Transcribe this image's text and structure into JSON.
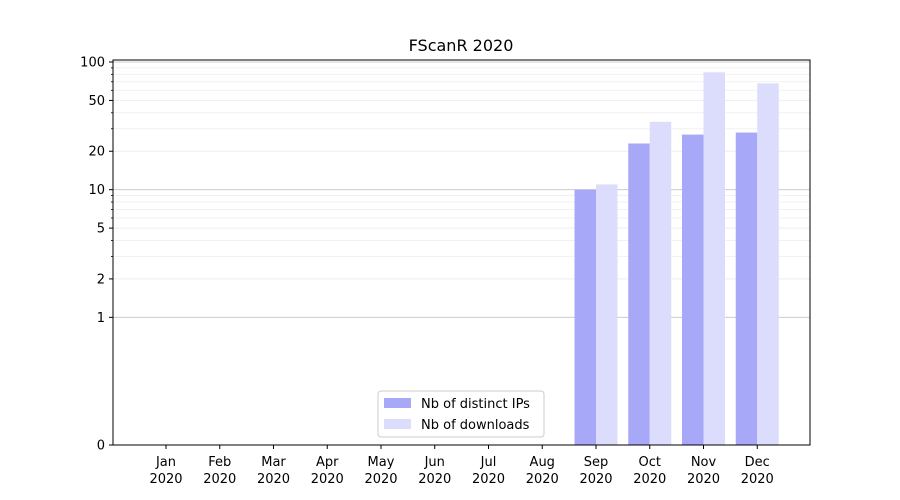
{
  "chart_data": {
    "type": "bar",
    "title": "FScanR 2020",
    "xlabel": "",
    "ylabel": "",
    "categories": [
      [
        "Jan",
        "2020"
      ],
      [
        "Feb",
        "2020"
      ],
      [
        "Mar",
        "2020"
      ],
      [
        "Apr",
        "2020"
      ],
      [
        "May",
        "2020"
      ],
      [
        "Jun",
        "2020"
      ],
      [
        "Jul",
        "2020"
      ],
      [
        "Aug",
        "2020"
      ],
      [
        "Sep",
        "2020"
      ],
      [
        "Oct",
        "2020"
      ],
      [
        "Nov",
        "2020"
      ],
      [
        "Dec",
        "2020"
      ]
    ],
    "series": [
      {
        "name": "Nb of distinct IPs",
        "color": "#a8a8f8",
        "values": [
          0,
          0,
          0,
          0,
          0,
          0,
          0,
          0,
          10,
          23,
          27,
          28
        ]
      },
      {
        "name": "Nb of downloads",
        "color": "#dcdcfc",
        "values": [
          0,
          0,
          0,
          0,
          0,
          0,
          0,
          0,
          11,
          34,
          83,
          68
        ]
      }
    ],
    "y_scale": "symlog",
    "ylim": [
      0,
      100
    ],
    "y_ticks": [
      "0",
      "1",
      "2",
      "5",
      "10",
      "20",
      "50",
      "100"
    ],
    "grid": true,
    "legend_position": "bottom-center"
  }
}
